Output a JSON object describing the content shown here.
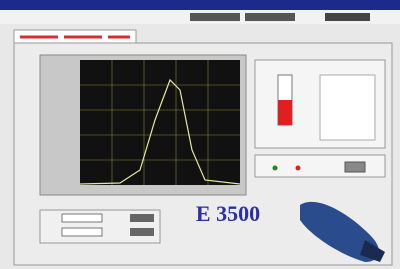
{
  "window": {
    "logo_text": "E 3500"
  }
}
